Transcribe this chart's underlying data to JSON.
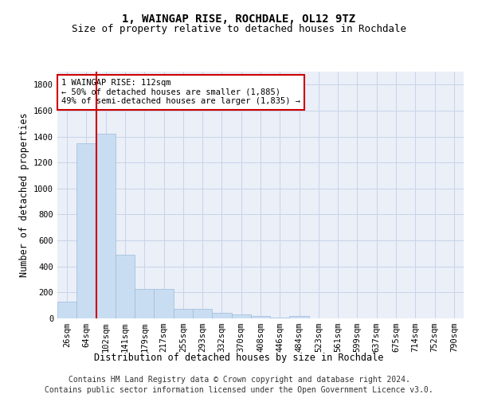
{
  "title": "1, WAINGAP RISE, ROCHDALE, OL12 9TZ",
  "subtitle": "Size of property relative to detached houses in Rochdale",
  "xlabel": "Distribution of detached houses by size in Rochdale",
  "ylabel": "Number of detached properties",
  "footer_line1": "Contains HM Land Registry data © Crown copyright and database right 2024.",
  "footer_line2": "Contains public sector information licensed under the Open Government Licence v3.0.",
  "annotation_title": "1 WAINGAP RISE: 112sqm",
  "annotation_line1": "← 50% of detached houses are smaller (1,885)",
  "annotation_line2": "49% of semi-detached houses are larger (1,835) →",
  "bar_labels": [
    "26sqm",
    "64sqm",
    "102sqm",
    "141sqm",
    "179sqm",
    "217sqm",
    "255sqm",
    "293sqm",
    "332sqm",
    "370sqm",
    "408sqm",
    "446sqm",
    "484sqm",
    "523sqm",
    "561sqm",
    "599sqm",
    "637sqm",
    "675sqm",
    "714sqm",
    "752sqm",
    "790sqm"
  ],
  "bar_values": [
    130,
    1350,
    1420,
    490,
    225,
    225,
    75,
    75,
    40,
    30,
    20,
    5,
    20,
    0,
    0,
    0,
    0,
    0,
    0,
    0,
    0
  ],
  "bar_color": "#c9ddf2",
  "bar_edge_color": "#9bbcd8",
  "grid_color": "#c8d4e8",
  "bg_color": "#eaeff8",
  "vline_x_index": 2,
  "vline_color": "#cc0000",
  "annotation_box_color": "#cc0000",
  "ylim": [
    0,
    1900
  ],
  "yticks": [
    0,
    200,
    400,
    600,
    800,
    1000,
    1200,
    1400,
    1600,
    1800
  ],
  "title_fontsize": 10,
  "subtitle_fontsize": 9,
  "axis_label_fontsize": 8.5,
  "tick_fontsize": 7.5,
  "annotation_fontsize": 7.5,
  "footer_fontsize": 7
}
